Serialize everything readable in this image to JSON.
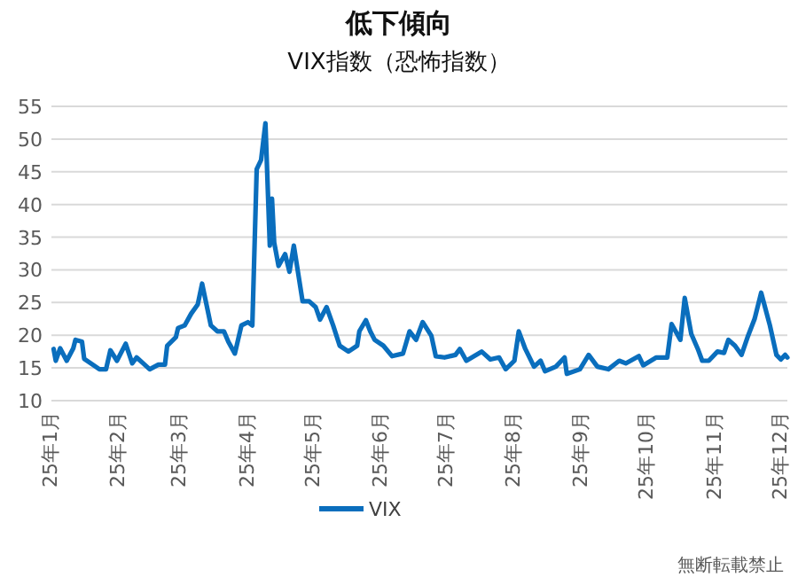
{
  "chart_data": {
    "type": "line",
    "title": "低下傾向",
    "subtitle": "VIX指数（恐怖指数）",
    "x": [
      "--01-02",
      "--01-03",
      "--01-05",
      "--01-08",
      "--01-11",
      "--01-12",
      "--01-15",
      "--01-16",
      "--01-19",
      "--01-23",
      "--01-26",
      "--01-28",
      "--01-31",
      "--02-04",
      "--02-07",
      "--02-09",
      "--02-12",
      "--02-15",
      "--02-19",
      "--02-22",
      "--02-23",
      "--02-27",
      "--02-28",
      "--03-03",
      "--03-06",
      "--03-09",
      "--03-11",
      "--03-13",
      "--03-15",
      "--03-18",
      "--03-21",
      "--03-23",
      "--03-26",
      "--03-29",
      "--04-01",
      "--04-03",
      "--04-05",
      "--04-07",
      "--04-09",
      "--04-11",
      "--04-12",
      "--04-13",
      "--04-15",
      "--04-18",
      "--04-20",
      "--04-22",
      "--04-26",
      "--04-29",
      "--05-02",
      "--05-04",
      "--05-07",
      "--05-10",
      "--05-13",
      "--05-17",
      "--05-21",
      "--05-22",
      "--05-25",
      "--05-27",
      "--05-29",
      "--06-02",
      "--06-06",
      "--06-11",
      "--06-14",
      "--06-17",
      "--06-20",
      "--06-24",
      "--06-26",
      "--06-30",
      "--07-05",
      "--07-07",
      "--07-10",
      "--07-17",
      "--07-21",
      "--07-25",
      "--07-28",
      "--08-01",
      "--08-03",
      "--08-06",
      "--08-10",
      "--08-13",
      "--08-15",
      "--08-20",
      "--08-24",
      "--08-25",
      "--08-31",
      "--09-04",
      "--09-08",
      "--09-13",
      "--09-18",
      "--09-21",
      "--09-27",
      "--09-29",
      "--10-05",
      "--10-10",
      "--10-12",
      "--10-16",
      "--10-18",
      "--10-21",
      "--10-24",
      "--10-26",
      "--10-29",
      "--11-02",
      "--11-05",
      "--11-07",
      "--11-10",
      "--11-13",
      "--11-16",
      "--11-19",
      "--11-22",
      "--11-26",
      "--11-29",
      "--12-01",
      "--12-03",
      "--12-04"
    ],
    "series": [
      {
        "name": "VIX",
        "color": "#0a6ebd",
        "values": [
          17.9,
          16.1,
          18.0,
          16.1,
          18.0,
          19.3,
          19.0,
          16.4,
          15.7,
          14.8,
          14.8,
          17.7,
          16.1,
          18.7,
          15.7,
          16.6,
          15.7,
          14.8,
          15.5,
          15.5,
          18.4,
          19.7,
          21.1,
          21.5,
          23.3,
          24.7,
          27.9,
          24.7,
          21.5,
          20.6,
          20.6,
          19.0,
          17.2,
          21.5,
          22.0,
          21.5,
          45.4,
          46.8,
          52.4,
          33.7,
          40.9,
          34.2,
          30.6,
          32.4,
          29.7,
          33.7,
          25.2,
          25.2,
          24.3,
          22.4,
          24.3,
          21.5,
          18.4,
          17.5,
          18.4,
          20.6,
          22.3,
          20.6,
          19.3,
          18.4,
          16.8,
          17.2,
          20.6,
          19.3,
          22.0,
          19.9,
          16.8,
          16.6,
          17.0,
          17.9,
          16.1,
          17.5,
          16.3,
          16.6,
          14.8,
          16.1,
          20.6,
          17.9,
          15.2,
          16.1,
          14.5,
          15.2,
          16.6,
          14.1,
          14.8,
          17.0,
          15.2,
          14.8,
          16.1,
          15.7,
          16.8,
          15.4,
          16.6,
          16.6,
          21.7,
          19.3,
          25.7,
          20.2,
          17.9,
          16.1,
          16.1,
          17.5,
          17.3,
          19.3,
          18.4,
          17.0,
          19.9,
          22.5,
          26.5,
          21.5,
          17.0,
          16.3,
          17.0,
          16.6
        ]
      }
    ],
    "xlim": [
      "--01-01",
      "--12-04"
    ],
    "ylim": [
      10,
      55
    ],
    "xticks": [
      {
        "value": "--01-01",
        "label": "25年1月"
      },
      {
        "value": "--02-01",
        "label": "25年2月"
      },
      {
        "value": "--03-01",
        "label": "25年3月"
      },
      {
        "value": "--04-01",
        "label": "25年4月"
      },
      {
        "value": "--05-01",
        "label": "25年5月"
      },
      {
        "value": "--06-01",
        "label": "25年6月"
      },
      {
        "value": "--07-01",
        "label": "25年7月"
      },
      {
        "value": "--08-01",
        "label": "25年8月"
      },
      {
        "value": "--09-01",
        "label": "25年9月"
      },
      {
        "value": "--10-01",
        "label": "25年10月"
      },
      {
        "value": "--11-01",
        "label": "25年11月"
      },
      {
        "value": "--12-01",
        "label": "25年12月"
      }
    ],
    "yticks": [
      10,
      15,
      20,
      25,
      30,
      35,
      40,
      45,
      50,
      55
    ],
    "grid": "y",
    "legend": "bottom",
    "line_style": "solid",
    "annotations": [
      "無断転載禁止"
    ]
  }
}
